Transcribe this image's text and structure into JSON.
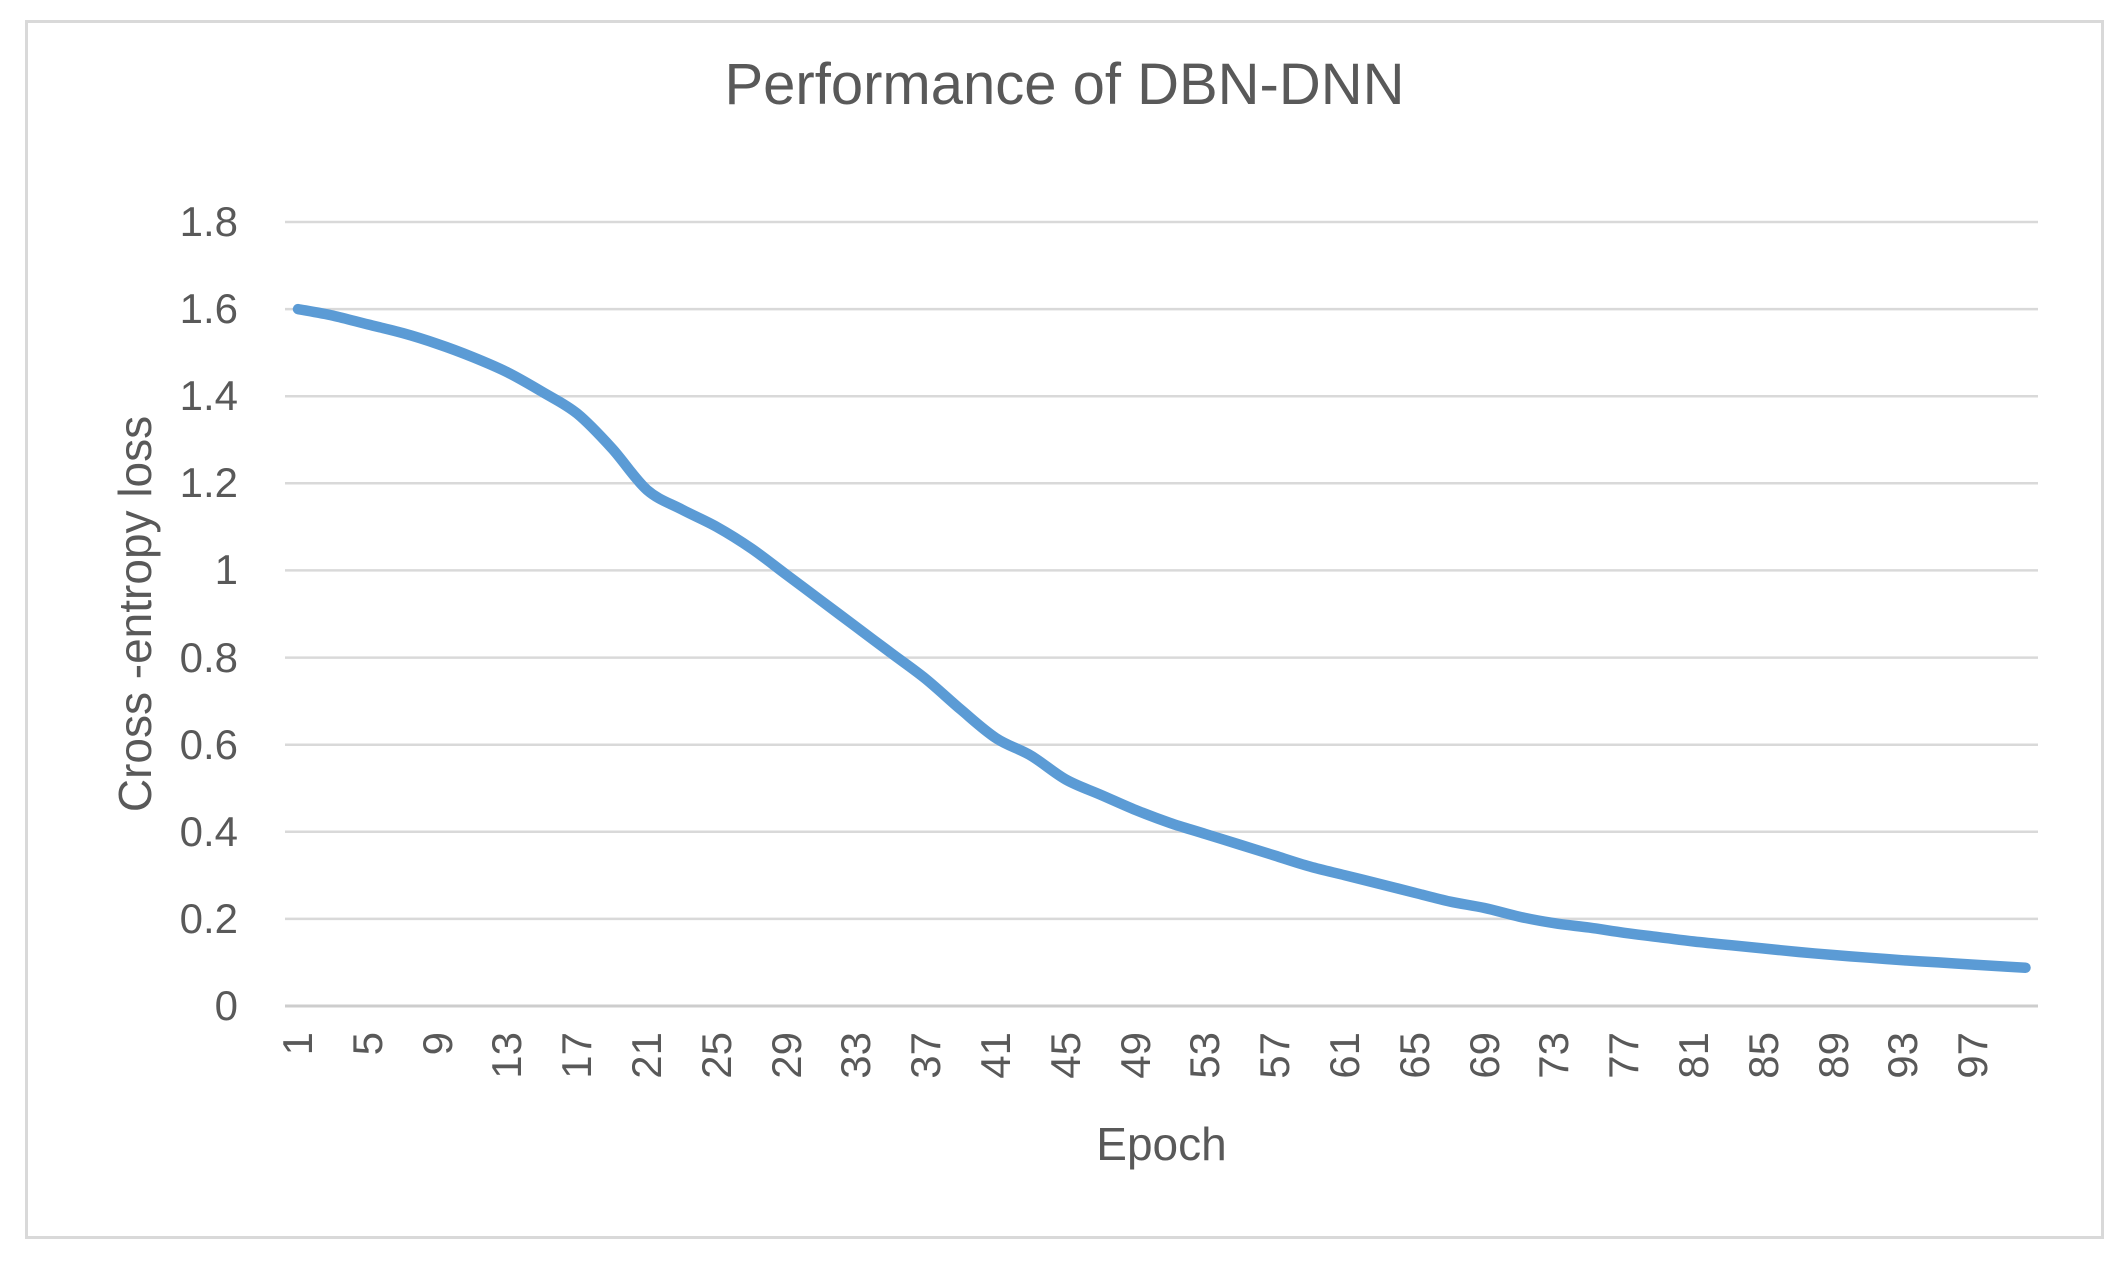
{
  "chart_data": {
    "type": "line",
    "title": "Performance of DBN-DNN",
    "xlabel": "Epoch",
    "ylabel": "Cross -entropy loss",
    "legend": "none",
    "grid": "horizontal",
    "xlim": [
      1,
      100
    ],
    "ylim": [
      0,
      1.8
    ],
    "x_tick_labels": [
      "1",
      "5",
      "9",
      "13",
      "17",
      "21",
      "25",
      "29",
      "33",
      "37",
      "41",
      "45",
      "49",
      "53",
      "57",
      "61",
      "65",
      "69",
      "73",
      "77",
      "81",
      "85",
      "89",
      "93",
      "97"
    ],
    "y_tick_labels": [
      "0",
      "0.2",
      "0.4",
      "0.6",
      "0.8",
      "1",
      "1.2",
      "1.4",
      "1.6",
      "1.8"
    ],
    "series": [
      {
        "name": "Cross-entropy loss",
        "color": "#5B9BD5",
        "x": [
          1,
          3,
          5,
          7,
          9,
          11,
          13,
          15,
          17,
          19,
          21,
          23,
          25,
          27,
          29,
          31,
          33,
          35,
          37,
          39,
          41,
          43,
          45,
          47,
          49,
          51,
          53,
          55,
          57,
          59,
          61,
          63,
          65,
          67,
          69,
          71,
          73,
          75,
          77,
          79,
          81,
          83,
          85,
          87,
          89,
          91,
          93,
          95,
          97,
          99,
          100
        ],
        "y": [
          1.6,
          1.585,
          1.565,
          1.545,
          1.52,
          1.49,
          1.455,
          1.41,
          1.36,
          1.28,
          1.185,
          1.14,
          1.1,
          1.05,
          0.99,
          0.93,
          0.87,
          0.81,
          0.75,
          0.68,
          0.615,
          0.575,
          0.52,
          0.485,
          0.45,
          0.42,
          0.395,
          0.37,
          0.345,
          0.32,
          0.3,
          0.28,
          0.26,
          0.24,
          0.225,
          0.205,
          0.19,
          0.18,
          0.168,
          0.158,
          0.148,
          0.14,
          0.132,
          0.124,
          0.117,
          0.111,
          0.105,
          0.1,
          0.095,
          0.09,
          0.088
        ]
      }
    ],
    "colors": {
      "line": "#5B9BD5",
      "text": "#595959",
      "gridline": "#D9D9D9",
      "axis_line": "#CDCDCD",
      "frame_border": "#D9D9D9",
      "background": "#FFFFFF"
    }
  }
}
